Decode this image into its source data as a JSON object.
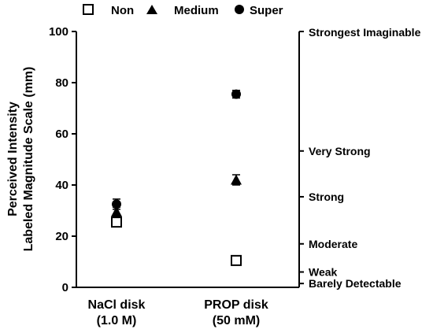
{
  "chart_data": {
    "type": "scatter",
    "categories": [
      "NaCl disk\n(1.0 M)",
      "PROP disk\n(50 mM)"
    ],
    "ylabel": [
      "Perceived Intensity",
      "Labeled Magnitude Scale (mm)"
    ],
    "ylim": [
      0,
      100
    ],
    "yticks": [
      0,
      20,
      40,
      60,
      80,
      100
    ],
    "legend_position": "top",
    "grid": false,
    "series": [
      {
        "name": "Non",
        "marker": "open-square",
        "values": [
          25.5,
          10.5
        ],
        "errors": [
          1.5,
          1.2
        ]
      },
      {
        "name": "Medium",
        "marker": "filled-triangle",
        "values": [
          29.5,
          42
        ],
        "errors": [
          1.8,
          2.0
        ]
      },
      {
        "name": "Super",
        "marker": "filled-circle",
        "values": [
          32.5,
          75.5
        ],
        "errors": [
          2.0,
          1.5
        ]
      }
    ],
    "right_axis_labels": [
      {
        "label": "Strongest Imaginable",
        "value": 100
      },
      {
        "label": "Very Strong",
        "value": 53.3
      },
      {
        "label": "Strong",
        "value": 35.4
      },
      {
        "label": "Moderate",
        "value": 17
      },
      {
        "label": "Weak",
        "value": 6
      },
      {
        "label": "Barely Detectable",
        "value": 1.5
      }
    ]
  }
}
